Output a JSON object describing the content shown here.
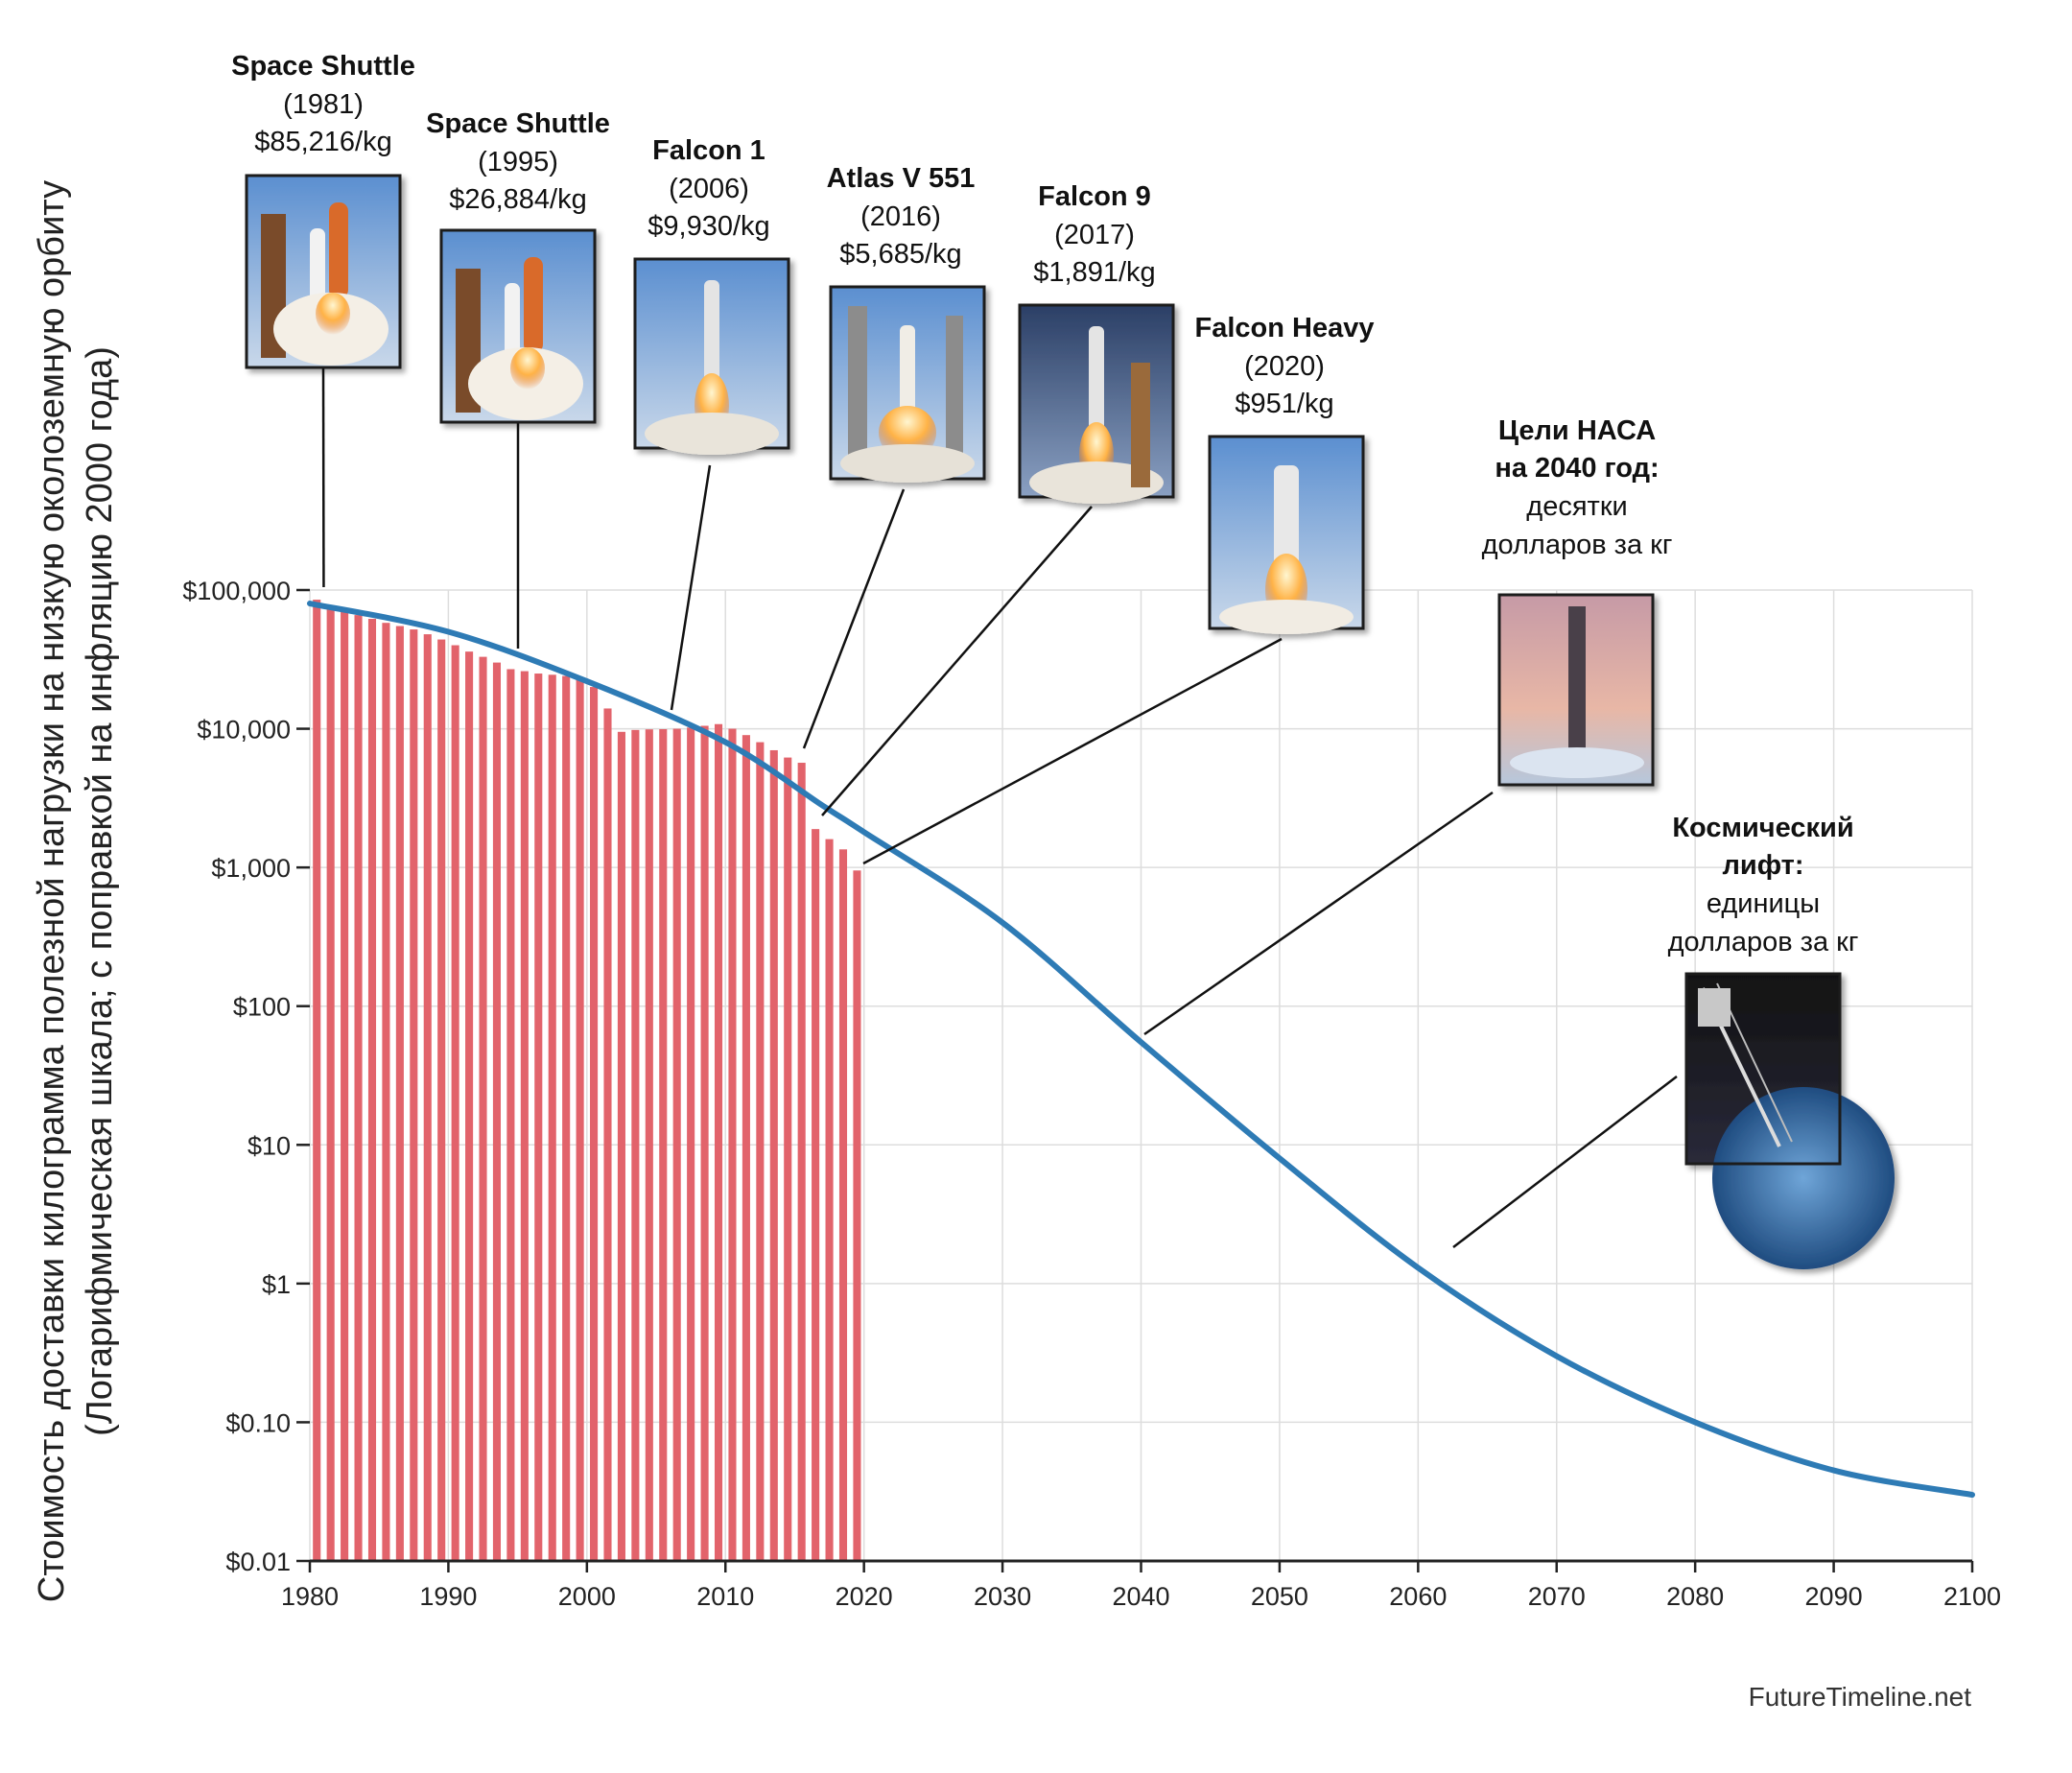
{
  "chart_data": {
    "type": "bar+line",
    "y_scale": "log",
    "ylabel": "Стоимость доставки килограмма полезной нагрузки на низкую околоземную орбиту",
    "ylabel_sub": "(Логарифмическая шкала; с поправкой на инфляцию 2000 года)",
    "xlim": [
      1980,
      2100
    ],
    "ylim": [
      0.01,
      100000
    ],
    "x_ticks": [
      1980,
      1990,
      2000,
      2010,
      2020,
      2030,
      2040,
      2050,
      2060,
      2070,
      2080,
      2090,
      2100
    ],
    "x_tick_labels": [
      "1980",
      "1990",
      "2000",
      "2010",
      "2020",
      "2030",
      "2040",
      "2050",
      "2060",
      "2070",
      "2080",
      "2090",
      "2100"
    ],
    "y_ticks": [
      100000,
      10000,
      1000,
      100,
      10,
      1,
      0.1,
      0.01
    ],
    "y_tick_labels": [
      "$100,000",
      "$10,000",
      "$1,000",
      "$100",
      "$10",
      "$1",
      "$0.10",
      "$0.01"
    ],
    "grid": true,
    "colors": {
      "bars": "#e2636b",
      "line": "#2e7bb5",
      "grid": "#dddddd"
    },
    "bars": {
      "x": [
        1981,
        1982,
        1983,
        1984,
        1985,
        1986,
        1987,
        1988,
        1989,
        1990,
        1991,
        1992,
        1993,
        1994,
        1995,
        1996,
        1997,
        1998,
        1999,
        2000,
        2001,
        2002,
        2003,
        2004,
        2005,
        2006,
        2007,
        2008,
        2009,
        2010,
        2011,
        2012,
        2013,
        2014,
        2015,
        2016,
        2017,
        2018,
        2019,
        2020
      ],
      "values": [
        85216,
        75000,
        70000,
        66000,
        62000,
        58000,
        55000,
        52000,
        48000,
        44000,
        40000,
        36000,
        33000,
        30000,
        26884,
        26000,
        25000,
        24500,
        24000,
        23000,
        20000,
        14000,
        9500,
        9800,
        9900,
        9930,
        10000,
        10200,
        10500,
        10800,
        10000,
        9000,
        8000,
        7000,
        6200,
        5685,
        1891,
        1600,
        1350,
        951
      ]
    },
    "trend": {
      "x": [
        1980,
        1990,
        2000,
        2010,
        2017,
        2020,
        2030,
        2040,
        2050,
        2060,
        2070,
        2080,
        2090,
        2100
      ],
      "values": [
        80000,
        50000,
        22000,
        8000,
        2800,
        1800,
        400,
        55,
        8,
        1.3,
        0.3,
        0.1,
        0.045,
        0.03
      ]
    },
    "annotations": [
      {
        "id": "shuttle-1981",
        "title": "Space Shuttle",
        "year": "(1981)",
        "price": "$85,216/kg",
        "x": 1981,
        "y": 85216
      },
      {
        "id": "shuttle-1995",
        "title": "Space Shuttle",
        "year": "(1995)",
        "price": "$26,884/kg",
        "x": 1995,
        "y": 26884
      },
      {
        "id": "falcon-1",
        "title": "Falcon 1",
        "year": "(2006)",
        "price": "$9,930/kg",
        "x": 2006,
        "y": 9930
      },
      {
        "id": "atlas-v",
        "title": "Atlas V 551",
        "year": "(2016)",
        "price": "$5,685/kg",
        "x": 2016,
        "y": 5685
      },
      {
        "id": "falcon-9",
        "title": "Falcon 9",
        "year": "(2017)",
        "price": "$1,891/kg",
        "x": 2017,
        "y": 1891
      },
      {
        "id": "falcon-heavy",
        "title": "Falcon Heavy",
        "year": "(2020)",
        "price": "$951/kg",
        "x": 2020,
        "y": 951
      }
    ],
    "nasa_goal": {
      "title1": "Цели НАСА",
      "title2": "на 2040 год:",
      "text1": "десятки",
      "text2": "долларов за кг",
      "x": 2040,
      "y": 55
    },
    "space_elevator": {
      "title1": "Космический",
      "title2": "лифт:",
      "text1": "единицы",
      "text2": "долларов за кг",
      "x": 2063,
      "y": 1.0
    }
  },
  "credit": "FutureTimeline.net"
}
